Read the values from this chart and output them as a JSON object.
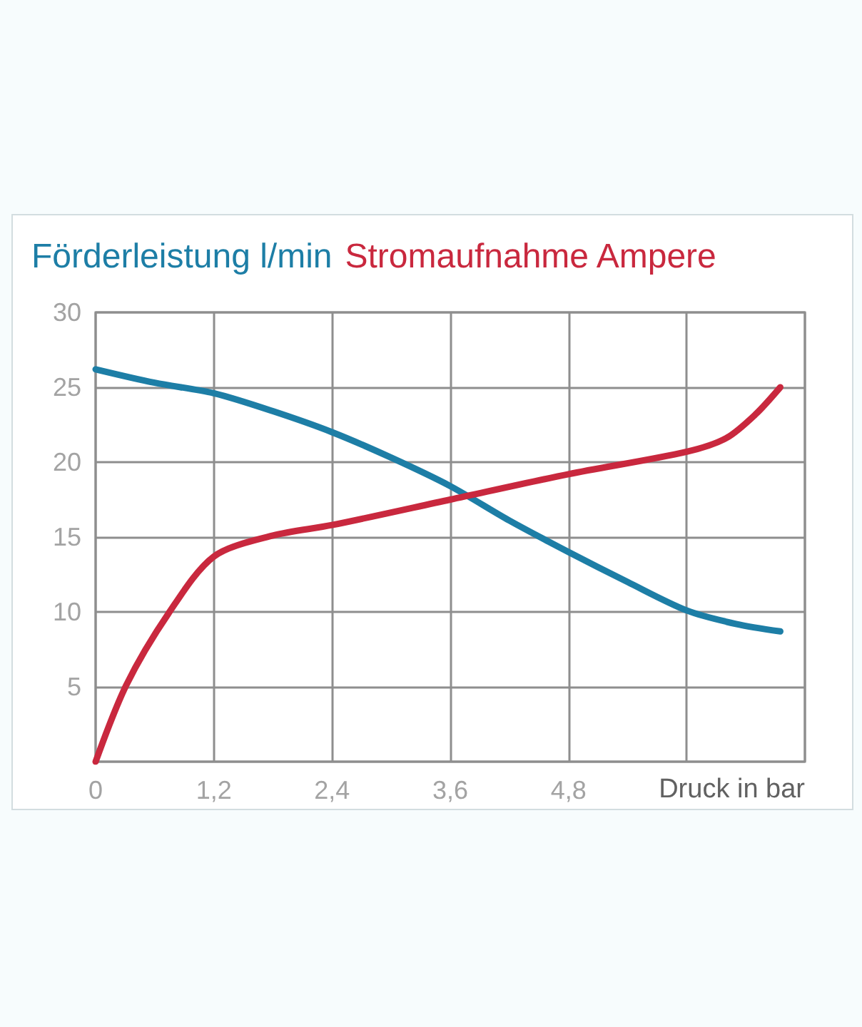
{
  "chart_data": {
    "type": "line",
    "xlabel": "Druck in bar",
    "legend": "top left",
    "grid": true,
    "marker": "none",
    "xlim": [
      0,
      7.2
    ],
    "xticks": [
      0,
      {
        "value": 1.2,
        "label": "1,2"
      },
      {
        "value": 2.4,
        "label": "2,4"
      },
      {
        "value": 3.6,
        "label": "3,6"
      },
      {
        "value": 4.8,
        "label": "4,8"
      },
      {
        "value": 6.0,
        "label": null
      }
    ],
    "ylim": [
      0,
      30
    ],
    "yticks": [
      {
        "value": 0,
        "label": null
      },
      5,
      10,
      15,
      20,
      25,
      30
    ],
    "series": [
      {
        "name": "Förderleistung l/min",
        "color": "#1d7ea6",
        "x": [
          0,
          0.6,
          1.2,
          1.8,
          2.4,
          3.0,
          3.6,
          4.2,
          4.8,
          5.4,
          6.0,
          6.5,
          6.95
        ],
        "values": [
          26.2,
          25.3,
          24.6,
          23.4,
          22.0,
          20.3,
          18.4,
          16.1,
          14.0,
          12.0,
          10.1,
          9.2,
          8.7
        ]
      },
      {
        "name": "Stromaufnahme Ampere",
        "color": "#c9283e",
        "x": [
          0,
          0.31,
          0.74,
          1.2,
          1.8,
          2.4,
          3.6,
          4.8,
          6.0,
          6.4,
          6.7,
          6.95
        ],
        "values": [
          0,
          5.1,
          9.9,
          13.7,
          15.1,
          15.8,
          17.5,
          19.2,
          20.7,
          21.6,
          23.2,
          25.0
        ]
      }
    ]
  }
}
